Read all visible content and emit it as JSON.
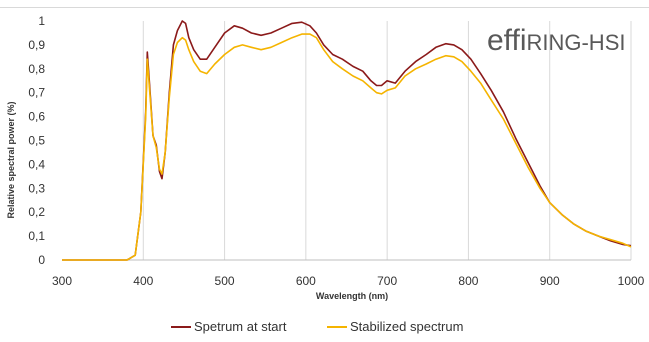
{
  "chart_data": {
    "type": "line",
    "title": "",
    "xlabel": "Wavelength (nm)",
    "ylabel": "Relative spectral  power (%)",
    "xlim": [
      300,
      1000
    ],
    "ylim": [
      0,
      1
    ],
    "x_ticks": [
      "300",
      "400",
      "500",
      "600",
      "700",
      "800",
      "900",
      "1000"
    ],
    "y_ticks": [
      "0",
      "0,1",
      "0,2",
      "0,3",
      "0,4",
      "0,5",
      "0,6",
      "0,7",
      "0,8",
      "0,9",
      "1"
    ],
    "grid": "vertical",
    "legend_position": "bottom",
    "logo_text": "effiRING-HSI",
    "series": [
      {
        "name": "Spetrum at start",
        "color": "#8b1a1a",
        "x": [
          300,
          380,
          390,
          397,
          403,
          405,
          408,
          412,
          416,
          420,
          423,
          427,
          432,
          437,
          442,
          448,
          452,
          456,
          462,
          470,
          478,
          488,
          500,
          512,
          522,
          533,
          545,
          557,
          570,
          583,
          595,
          605,
          613,
          622,
          633,
          645,
          658,
          670,
          680,
          687,
          693,
          700,
          710,
          722,
          735,
          748,
          760,
          772,
          782,
          792,
          803,
          815,
          828,
          843,
          858,
          873,
          888,
          900,
          915,
          930,
          945,
          960,
          975,
          990,
          1000
        ],
        "values": [
          0.0,
          0.0,
          0.02,
          0.2,
          0.62,
          0.87,
          0.72,
          0.52,
          0.48,
          0.37,
          0.34,
          0.45,
          0.7,
          0.9,
          0.96,
          1.0,
          0.99,
          0.93,
          0.88,
          0.84,
          0.84,
          0.89,
          0.95,
          0.98,
          0.97,
          0.95,
          0.94,
          0.95,
          0.97,
          0.99,
          0.995,
          0.98,
          0.95,
          0.9,
          0.86,
          0.84,
          0.81,
          0.79,
          0.75,
          0.73,
          0.73,
          0.75,
          0.74,
          0.79,
          0.83,
          0.86,
          0.89,
          0.905,
          0.9,
          0.88,
          0.84,
          0.78,
          0.71,
          0.62,
          0.51,
          0.41,
          0.31,
          0.24,
          0.19,
          0.15,
          0.12,
          0.1,
          0.08,
          0.065,
          0.06
        ]
      },
      {
        "name": "Stabilized spectrum",
        "color": "#f5b400",
        "x": [
          300,
          380,
          390,
          397,
          403,
          405,
          408,
          412,
          416,
          420,
          423,
          427,
          432,
          437,
          442,
          448,
          452,
          456,
          462,
          470,
          478,
          488,
          500,
          512,
          522,
          533,
          545,
          557,
          570,
          583,
          595,
          605,
          613,
          622,
          633,
          645,
          658,
          670,
          680,
          687,
          693,
          700,
          710,
          722,
          735,
          748,
          760,
          772,
          782,
          792,
          803,
          815,
          828,
          843,
          858,
          873,
          888,
          900,
          915,
          930,
          945,
          960,
          975,
          990,
          1000
        ],
        "values": [
          0.0,
          0.0,
          0.02,
          0.2,
          0.6,
          0.84,
          0.7,
          0.52,
          0.47,
          0.38,
          0.36,
          0.45,
          0.68,
          0.86,
          0.91,
          0.93,
          0.92,
          0.88,
          0.83,
          0.79,
          0.78,
          0.82,
          0.86,
          0.89,
          0.9,
          0.89,
          0.88,
          0.89,
          0.91,
          0.93,
          0.945,
          0.945,
          0.93,
          0.88,
          0.83,
          0.8,
          0.77,
          0.75,
          0.72,
          0.7,
          0.695,
          0.71,
          0.72,
          0.77,
          0.8,
          0.82,
          0.84,
          0.855,
          0.85,
          0.83,
          0.79,
          0.74,
          0.67,
          0.59,
          0.49,
          0.39,
          0.3,
          0.24,
          0.19,
          0.15,
          0.12,
          0.1,
          0.085,
          0.07,
          0.055
        ]
      }
    ]
  }
}
